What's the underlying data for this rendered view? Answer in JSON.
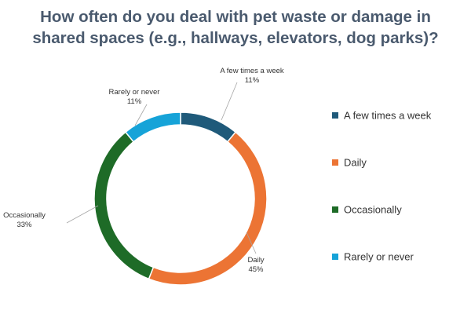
{
  "title": {
    "line1": "How often do you deal with pet waste or damage in",
    "line2": "shared spaces (e.g., hallways, elevators, dog parks)?"
  },
  "chart_data": {
    "type": "pie",
    "variant": "donut",
    "title": "How often do you deal with pet waste or damage in shared spaces (e.g., hallways, elevators, dog parks)?",
    "unit": "%",
    "legend_position": "right",
    "slices": [
      {
        "label": "A few times a week",
        "value": 11,
        "value_label": "11%",
        "color": "#1f5a7a"
      },
      {
        "label": "Daily",
        "value": 45,
        "value_label": "45%",
        "color": "#ec7434"
      },
      {
        "label": "Occasionally",
        "value": 33,
        "value_label": "33%",
        "color": "#1e6b27"
      },
      {
        "label": "Rarely or never",
        "value": 11,
        "value_label": "11%",
        "color": "#16a3d8"
      }
    ]
  }
}
